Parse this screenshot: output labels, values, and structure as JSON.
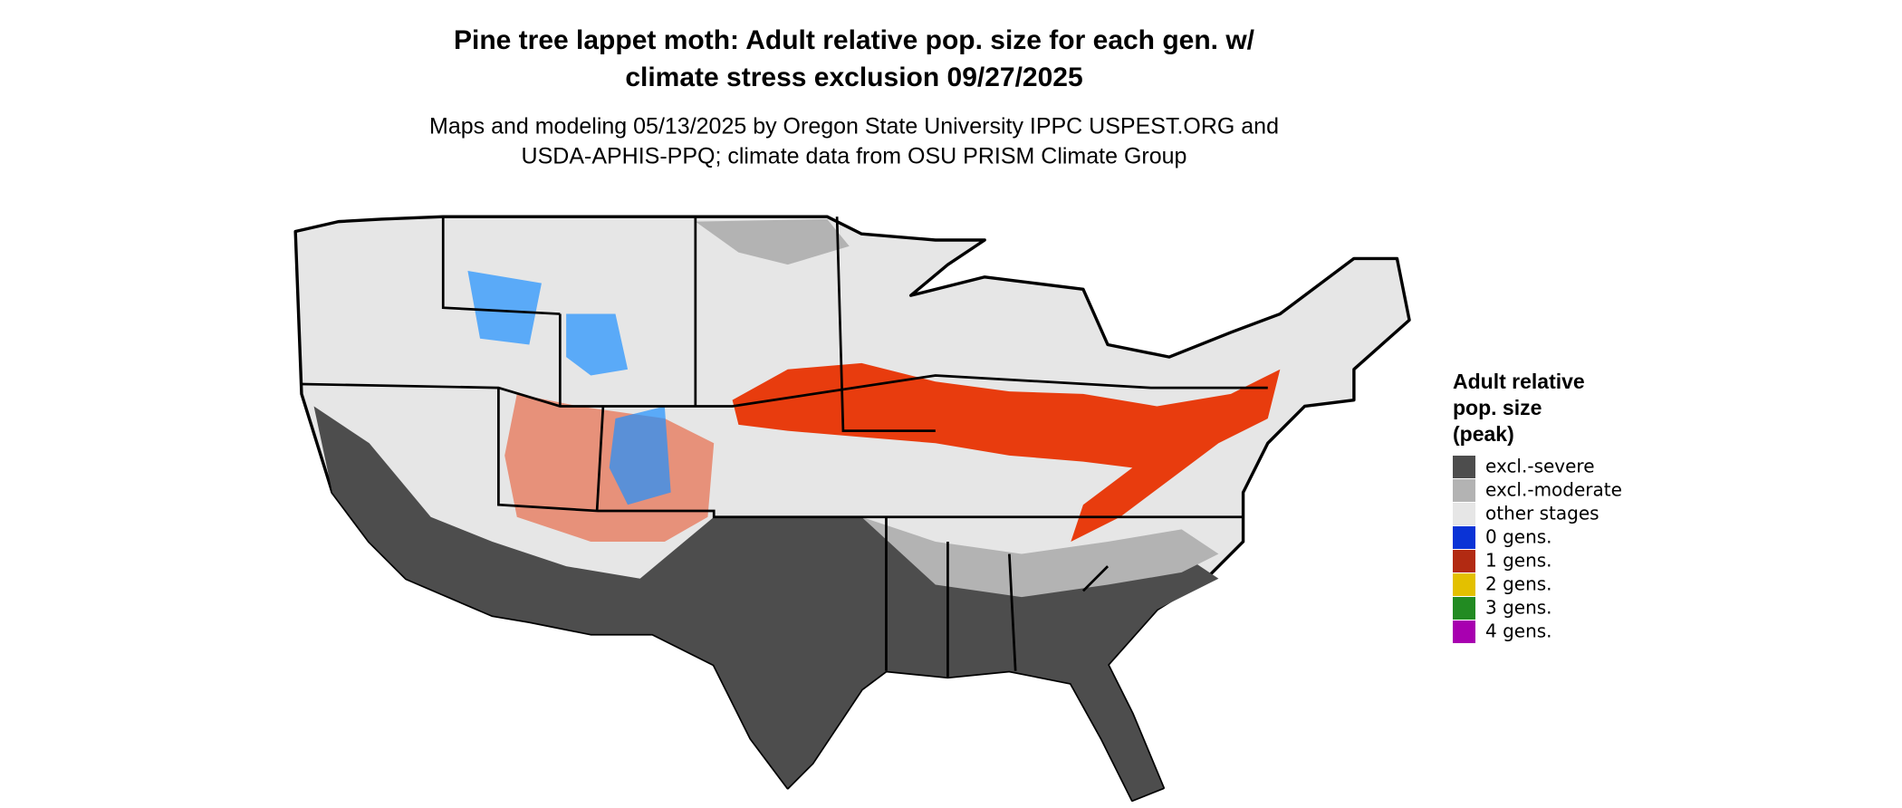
{
  "title": [
    "Pine tree lappet moth: Adult relative pop. size for each gen. w/",
    "climate stress exclusion 09/27/2025"
  ],
  "subtitle": [
    "Maps and modeling 05/13/2025 by Oregon State University IPPC USPEST.ORG and",
    "USDA-APHIS-PPQ; climate data from OSU PRISM Climate Group"
  ],
  "legend": {
    "title": [
      "Adult relative",
      "pop. size",
      "(peak)"
    ],
    "items": [
      {
        "label": "excl.-severe",
        "color": "#4d4d4d"
      },
      {
        "label": "excl.-moderate",
        "color": "#b3b3b3"
      },
      {
        "label": "other stages",
        "color": "#e6e6e6"
      },
      {
        "label": "0 gens.",
        "color": "#0a33d6"
      },
      {
        "label": "1 gens.",
        "color": "#b22a12"
      },
      {
        "label": "2 gens.",
        "color": "#e3c000"
      },
      {
        "label": "3 gens.",
        "color": "#228b22"
      },
      {
        "label": "4 gens.",
        "color": "#a800b0"
      }
    ]
  }
}
